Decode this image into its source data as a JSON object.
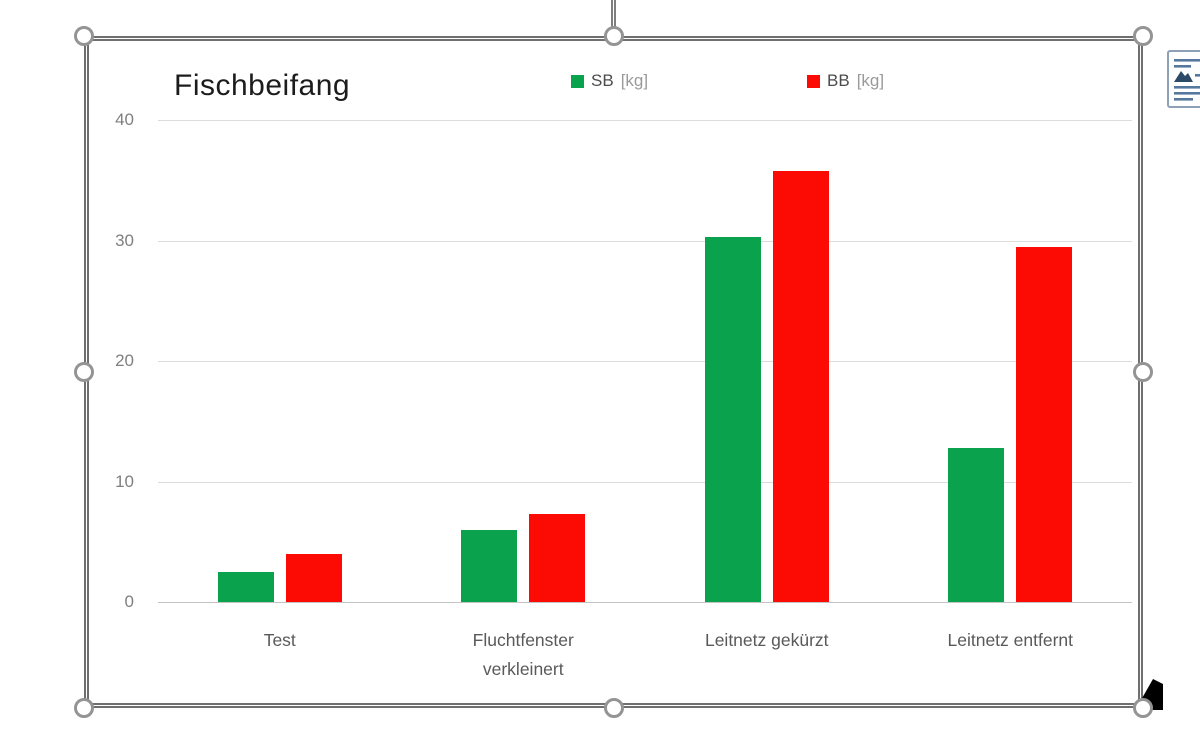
{
  "chart_data": {
    "type": "bar",
    "title": "Fischbeifang",
    "categories": [
      "Test",
      "Fluchtfenster verkleinert",
      "Leitnetz gekürzt",
      "Leitnetz entfernt"
    ],
    "series": [
      {
        "name": "SB [kg]",
        "color": "#0aa24c",
        "values": [
          2.5,
          6.0,
          30.3,
          12.8
        ]
      },
      {
        "name": "BB [kg]",
        "color": "#fb0b03",
        "values": [
          4.0,
          7.3,
          35.8,
          29.5
        ]
      }
    ],
    "xlabel": "",
    "ylabel": "",
    "ylim": [
      0,
      40
    ],
    "yticks": [
      0,
      10,
      20,
      30,
      40
    ],
    "grid": true,
    "legend_position": "top-center"
  },
  "ui": {
    "selected_object": "chart",
    "selection_handles": [
      "top-left",
      "top-center",
      "top-right",
      "middle-left",
      "middle-right",
      "bottom-left",
      "bottom-center",
      "bottom-right"
    ],
    "rotation_stem": true,
    "corner_marker_icon": "resize-marker-icon",
    "layout_options_icon": "layout-options-icon",
    "colors": {
      "frame_border": "#6f6f6f",
      "handle_ring": "#949494",
      "gridline": "#dcdcdc",
      "axis_text": "#7f7f7f",
      "category_text": "#595959",
      "title_text": "#1c1c1c"
    }
  }
}
